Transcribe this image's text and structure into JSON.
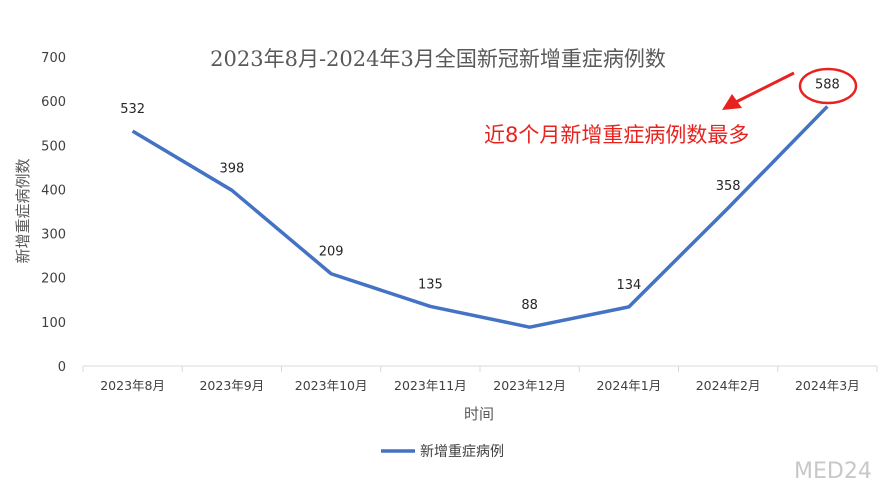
{
  "chart_data": {
    "type": "line",
    "title": "2023年8月-2024年3月全国新冠新增重症病例数",
    "xlabel": "时间",
    "ylabel": "新增重症病例数",
    "ylim": [
      0,
      700
    ],
    "yticks": [
      0,
      100,
      200,
      300,
      400,
      500,
      600,
      700
    ],
    "categories": [
      "2023年8月",
      "2023年9月",
      "2023年10月",
      "2023年11月",
      "2023年12月",
      "2024年1月",
      "2024年2月",
      "2024年3月"
    ],
    "series": [
      {
        "name": "新增重症病例",
        "values": [
          532,
          398,
          209,
          135,
          88,
          134,
          358,
          588
        ]
      }
    ],
    "annotation": "近8个月新增重症病例数最多",
    "legend_position": "bottom",
    "grid": false
  },
  "colors": {
    "series": "#4472c4",
    "annotation": "#e8231f",
    "axis": "#d9d9d9"
  },
  "watermark": "MED24"
}
